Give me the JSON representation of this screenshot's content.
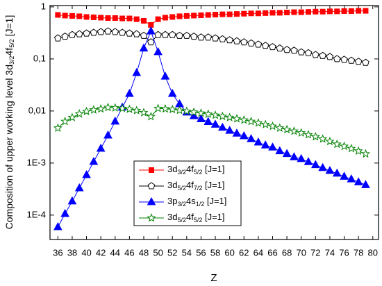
{
  "chart_data": {
    "type": "line",
    "x_label": "Z",
    "y_label": "Composition of upper working level 3d3/24f5/2 [J=1]",
    "x": [
      36,
      37,
      38,
      39,
      40,
      41,
      42,
      43,
      44,
      45,
      46,
      47,
      48,
      49,
      50,
      51,
      52,
      53,
      54,
      55,
      56,
      57,
      58,
      59,
      60,
      61,
      62,
      63,
      64,
      65,
      66,
      67,
      68,
      69,
      70,
      71,
      72,
      73,
      74,
      75,
      76,
      77,
      78,
      79
    ],
    "xlim": [
      34.9,
      80.8
    ],
    "xticks": [
      36,
      38,
      40,
      42,
      44,
      46,
      48,
      50,
      52,
      54,
      56,
      58,
      60,
      62,
      64,
      66,
      68,
      70,
      72,
      74,
      76,
      78,
      80
    ],
    "ylim": [
      3.4e-05,
      1.06
    ],
    "log_y": true,
    "yticks": [
      {
        "value": 0.0001,
        "label": "1E-4"
      },
      {
        "value": 0.001,
        "label": "1E-3"
      },
      {
        "value": 0.01,
        "label": "0,01"
      },
      {
        "value": 0.1,
        "label": "0,1"
      },
      1
    ],
    "series": [
      {
        "name": "3d3/24f5/2 [J=1]",
        "color": "#ff0000",
        "marker": "square",
        "values": [
          0.7,
          0.68,
          0.67,
          0.66,
          0.64,
          0.63,
          0.62,
          0.61,
          0.61,
          0.6,
          0.6,
          0.58,
          0.54,
          0.45,
          0.58,
          0.62,
          0.64,
          0.66,
          0.67,
          0.68,
          0.69,
          0.7,
          0.71,
          0.72,
          0.72,
          0.73,
          0.74,
          0.75,
          0.75,
          0.76,
          0.77,
          0.77,
          0.78,
          0.79,
          0.79,
          0.8,
          0.81,
          0.81,
          0.82,
          0.82,
          0.83,
          0.83,
          0.84,
          0.84
        ]
      },
      {
        "name": "3d5/24f7/2 [J=1]",
        "color": "#000000",
        "marker": "pentagon",
        "values": [
          0.25,
          0.27,
          0.29,
          0.3,
          0.31,
          0.32,
          0.33,
          0.34,
          0.33,
          0.32,
          0.31,
          0.3,
          0.28,
          0.21,
          0.29,
          0.29,
          0.29,
          0.28,
          0.28,
          0.27,
          0.26,
          0.26,
          0.25,
          0.24,
          0.23,
          0.22,
          0.21,
          0.2,
          0.19,
          0.18,
          0.17,
          0.16,
          0.15,
          0.145,
          0.135,
          0.13,
          0.12,
          0.115,
          0.11,
          0.1,
          0.097,
          0.093,
          0.089,
          0.085
        ]
      },
      {
        "name": "3p3/24s1/2 [J=1]",
        "color": "#0000ff",
        "marker": "triangle",
        "values": [
          5.9e-05,
          0.000106,
          0.000185,
          0.00033,
          0.00059,
          0.00106,
          0.0019,
          0.0034,
          0.0063,
          0.0117,
          0.0215,
          0.054,
          0.16,
          0.34,
          0.136,
          0.046,
          0.0215,
          0.0136,
          0.0094,
          0.008,
          0.007,
          0.0062,
          0.0055,
          0.0048,
          0.0042,
          0.0037,
          0.0033,
          0.0029,
          0.0025,
          0.0022,
          0.002,
          0.0017,
          0.0015,
          0.0013,
          0.0012,
          0.00105,
          0.00092,
          0.00081,
          0.00071,
          0.00063,
          0.00055,
          0.00049,
          0.00043,
          0.00038
        ]
      },
      {
        "name": "3d5/24f5/2 [J=1]",
        "color": "#008000",
        "marker": "star",
        "values": [
          0.0047,
          0.0063,
          0.0075,
          0.0088,
          0.0098,
          0.0105,
          0.011,
          0.0117,
          0.0115,
          0.0112,
          0.0108,
          0.0102,
          0.0093,
          0.0078,
          0.0112,
          0.011,
          0.0107,
          0.0103,
          0.0099,
          0.0095,
          0.0091,
          0.0087,
          0.0083,
          0.0079,
          0.0075,
          0.0071,
          0.0067,
          0.0063,
          0.0059,
          0.0055,
          0.0051,
          0.0047,
          0.0044,
          0.0041,
          0.0038,
          0.0035,
          0.0032,
          0.0029,
          0.0026,
          0.0023,
          0.0021,
          0.0019,
          0.0017,
          0.0015
        ]
      }
    ]
  }
}
